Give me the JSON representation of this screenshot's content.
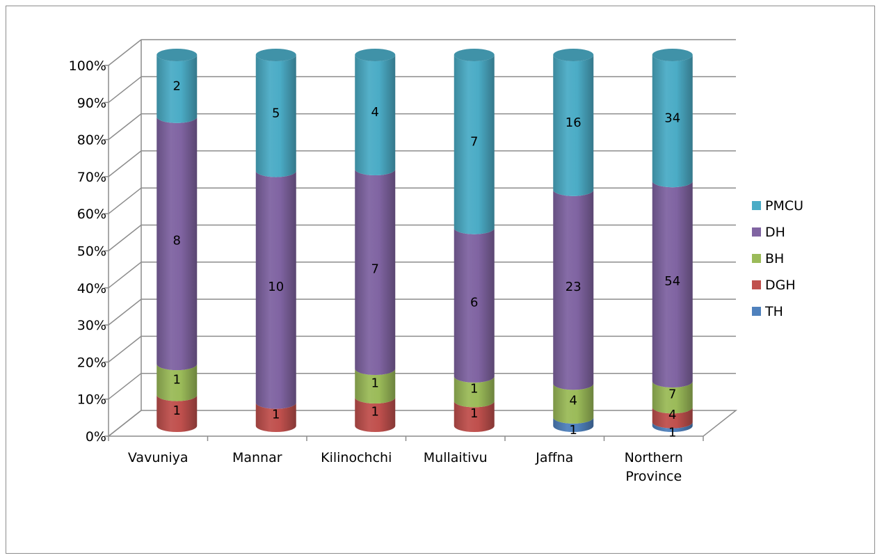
{
  "chart_data": {
    "type": "bar",
    "subtype": "100% stacked 3D cylinder column",
    "categories": [
      "Vavuniya",
      "Mannar",
      "Kilinochchi",
      "Mullaitivu",
      "Jaffna",
      "Northern Province"
    ],
    "series": [
      {
        "name": "TH",
        "color": "#4f81bd",
        "values": [
          0,
          0,
          0,
          0,
          1,
          1
        ]
      },
      {
        "name": "DGH",
        "color": "#c0504d",
        "values": [
          1,
          1,
          1,
          1,
          0,
          4
        ]
      },
      {
        "name": "BH",
        "color": "#9bbb59",
        "values": [
          1,
          0,
          1,
          1,
          4,
          7
        ]
      },
      {
        "name": "DH",
        "color": "#8064a2",
        "values": [
          8,
          10,
          7,
          6,
          23,
          54
        ]
      },
      {
        "name": "PMCU",
        "color": "#4bacc6",
        "values": [
          2,
          5,
          4,
          7,
          16,
          34
        ]
      }
    ],
    "yticks": [
      "0%",
      "10%",
      "20%",
      "30%",
      "40%",
      "50%",
      "60%",
      "70%",
      "80%",
      "90%",
      "100%"
    ],
    "ylim": [
      0,
      100
    ],
    "grid": true,
    "legend_position": "right",
    "legend_order": [
      "PMCU",
      "DH",
      "BH",
      "DGH",
      "TH"
    ],
    "title": "",
    "xlabel": "",
    "ylabel": ""
  }
}
